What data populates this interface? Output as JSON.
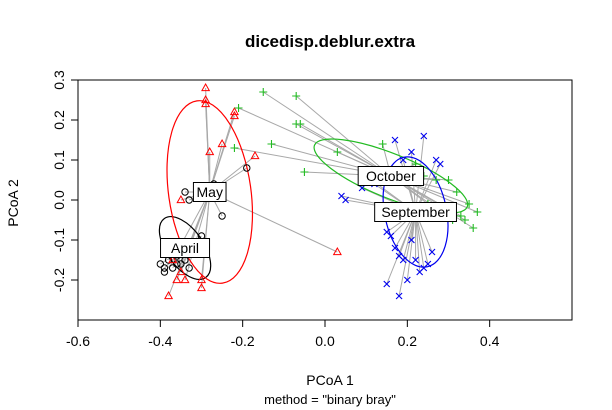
{
  "chart_data": {
    "type": "scatter",
    "title": "dicedisp.deblur.extra",
    "xlabel": "PCoA 1",
    "ylabel": "PCoA 2",
    "sub": "method = \"binary bray\"",
    "xlim": [
      -0.6,
      0.6
    ],
    "ylim": [
      -0.3,
      0.3
    ],
    "xticks": [
      -0.6,
      -0.4,
      -0.2,
      0.0,
      0.2,
      0.4
    ],
    "xtick_labels": [
      "-0.6",
      "-0.4",
      "-0.2",
      "0.0",
      "0.2",
      "0.4"
    ],
    "yticks": [
      -0.2,
      -0.1,
      0.0,
      0.1,
      0.2,
      0.3
    ],
    "ytick_labels": [
      "-0.2",
      "-0.1",
      "0.0",
      "0.1",
      "0.2",
      "0.3"
    ],
    "grid": false,
    "series": [
      {
        "name": "April",
        "color": "#000000",
        "marker": "circle",
        "centroid": [
          -0.34,
          -0.12
        ],
        "ellipse": {
          "rx": 0.045,
          "ry": 0.09,
          "angle_deg": 35
        },
        "points": [
          [
            -0.4,
            -0.16
          ],
          [
            -0.39,
            -0.17
          ],
          [
            -0.38,
            -0.15
          ],
          [
            -0.37,
            -0.17
          ],
          [
            -0.36,
            -0.14
          ],
          [
            -0.35,
            -0.16
          ],
          [
            -0.34,
            -0.15
          ],
          [
            -0.33,
            -0.17
          ],
          [
            -0.32,
            -0.11
          ],
          [
            -0.3,
            -0.09
          ],
          [
            -0.39,
            -0.18
          ],
          [
            -0.36,
            -0.16
          ]
        ]
      },
      {
        "name": "May",
        "color": "#000000",
        "marker": "circle",
        "centroid": [
          -0.28,
          0.02
        ],
        "ellipse": {
          "rx": 0.1,
          "ry": 0.23,
          "angle_deg": 8
        },
        "points": [
          [
            -0.33,
            0.0
          ],
          [
            -0.27,
            0.04
          ],
          [
            -0.25,
            -0.04
          ],
          [
            -0.19,
            0.08
          ],
          [
            -0.34,
            0.02
          ]
        ]
      },
      {
        "name": "",
        "color": "#ff0000",
        "marker": "triangle",
        "centroid": [
          -0.28,
          0.02
        ],
        "ellipse": {
          "rx": 0.1,
          "ry": 0.23,
          "angle_deg": 8
        },
        "points": [
          [
            -0.29,
            0.28
          ],
          [
            -0.29,
            0.25
          ],
          [
            -0.29,
            0.24
          ],
          [
            -0.22,
            0.22
          ],
          [
            -0.22,
            0.21
          ],
          [
            -0.25,
            0.14
          ],
          [
            -0.28,
            0.12
          ],
          [
            -0.17,
            0.11
          ],
          [
            -0.35,
            0.0
          ],
          [
            -0.38,
            -0.24
          ],
          [
            -0.37,
            -0.15
          ],
          [
            -0.35,
            -0.18
          ],
          [
            -0.34,
            -0.2
          ],
          [
            -0.3,
            -0.22
          ],
          [
            -0.36,
            -0.2
          ],
          [
            -0.3,
            -0.2
          ],
          [
            0.03,
            -0.13
          ]
        ]
      },
      {
        "name": "October",
        "color": "#22bb22",
        "marker": "plus",
        "centroid": [
          0.16,
          0.06
        ],
        "ellipse": {
          "rx": 0.2,
          "ry": 0.055,
          "angle_deg": -22
        },
        "points": [
          [
            -0.15,
            0.27
          ],
          [
            -0.07,
            0.26
          ],
          [
            -0.07,
            0.19
          ],
          [
            -0.06,
            0.19
          ],
          [
            -0.22,
            0.13
          ],
          [
            -0.21,
            0.23
          ],
          [
            -0.13,
            0.14
          ],
          [
            -0.05,
            0.07
          ],
          [
            0.14,
            0.14
          ],
          [
            0.22,
            0.09
          ],
          [
            0.24,
            0.06
          ],
          [
            0.27,
            0.05
          ],
          [
            0.3,
            0.05
          ],
          [
            0.32,
            0.02
          ],
          [
            0.35,
            -0.01
          ],
          [
            0.37,
            -0.03
          ],
          [
            0.36,
            -0.07
          ],
          [
            0.34,
            -0.05
          ],
          [
            0.33,
            -0.04
          ],
          [
            0.31,
            -0.05
          ],
          [
            0.03,
            0.12
          ],
          [
            0.25,
            -0.01
          ]
        ]
      },
      {
        "name": "September",
        "color": "#0000ee",
        "marker": "x",
        "centroid": [
          0.22,
          -0.03
        ],
        "ellipse": {
          "rx": 0.075,
          "ry": 0.14,
          "angle_deg": 12
        },
        "points": [
          [
            0.24,
            0.16
          ],
          [
            0.27,
            0.1
          ],
          [
            0.28,
            0.09
          ],
          [
            0.21,
            0.12
          ],
          [
            0.17,
            0.15
          ],
          [
            0.19,
            0.1
          ],
          [
            0.1,
            0.06
          ],
          [
            0.12,
            0.04
          ],
          [
            0.09,
            0.03
          ],
          [
            0.04,
            0.01
          ],
          [
            0.05,
            0.0
          ],
          [
            0.15,
            -0.08
          ],
          [
            0.16,
            -0.09
          ],
          [
            0.17,
            -0.12
          ],
          [
            0.18,
            -0.14
          ],
          [
            0.19,
            -0.15
          ],
          [
            0.21,
            -0.1
          ],
          [
            0.23,
            -0.18
          ],
          [
            0.24,
            -0.17
          ],
          [
            0.25,
            -0.16
          ],
          [
            0.15,
            -0.21
          ],
          [
            0.18,
            -0.24
          ],
          [
            0.2,
            -0.2
          ],
          [
            0.22,
            -0.15
          ],
          [
            0.26,
            -0.13
          ]
        ]
      }
    ]
  }
}
